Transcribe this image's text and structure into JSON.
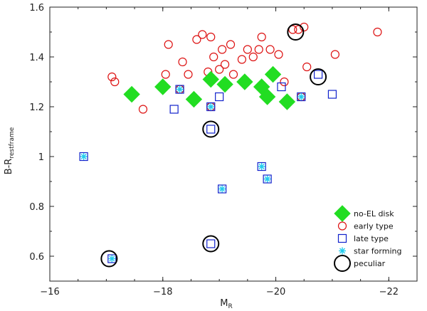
{
  "chart_data": {
    "type": "scatter",
    "xlabel": "M",
    "xlabel_sub": "R",
    "ylabel": "B-R",
    "ylabel_sub": "restframe",
    "xlim": [
      -16,
      -22.5
    ],
    "ylim": [
      0.5,
      1.6
    ],
    "x_ticks": [
      -16,
      -18,
      -20,
      -22
    ],
    "x_tick_labels": [
      "−16",
      "−18",
      "−20",
      "−22"
    ],
    "y_ticks": [
      0.6,
      0.8,
      1.0,
      1.2,
      1.4,
      1.6
    ],
    "y_tick_labels": [
      "0.6",
      "0.8",
      "1",
      "1.2",
      "1.4",
      "1.6"
    ],
    "grid": false,
    "legend_position": "bottom-right",
    "series": [
      {
        "name": "no-EL disk",
        "marker": "diamond",
        "color": "#22dd22",
        "points": [
          [
            -17.45,
            1.25
          ],
          [
            -18.0,
            1.28
          ],
          [
            -18.55,
            1.23
          ],
          [
            -18.85,
            1.31
          ],
          [
            -19.1,
            1.29
          ],
          [
            -19.45,
            1.3
          ],
          [
            -19.75,
            1.28
          ],
          [
            -19.85,
            1.24
          ],
          [
            -19.95,
            1.33
          ],
          [
            -20.2,
            1.22
          ]
        ]
      },
      {
        "name": "early type",
        "marker": "circle-open",
        "color": "#dd1111",
        "points": [
          [
            -17.1,
            1.32
          ],
          [
            -17.15,
            1.3
          ],
          [
            -17.65,
            1.19
          ],
          [
            -18.05,
            1.33
          ],
          [
            -18.1,
            1.45
          ],
          [
            -18.35,
            1.38
          ],
          [
            -18.45,
            1.33
          ],
          [
            -18.6,
            1.47
          ],
          [
            -18.7,
            1.49
          ],
          [
            -18.8,
            1.34
          ],
          [
            -18.85,
            1.48
          ],
          [
            -18.9,
            1.4
          ],
          [
            -19.0,
            1.35
          ],
          [
            -19.05,
            1.43
          ],
          [
            -19.1,
            1.37
          ],
          [
            -19.2,
            1.45
          ],
          [
            -19.25,
            1.33
          ],
          [
            -19.4,
            1.39
          ],
          [
            -19.5,
            1.43
          ],
          [
            -19.6,
            1.4
          ],
          [
            -19.7,
            1.43
          ],
          [
            -19.75,
            1.48
          ],
          [
            -19.9,
            1.43
          ],
          [
            -20.05,
            1.41
          ],
          [
            -20.15,
            1.3
          ],
          [
            -20.3,
            1.51
          ],
          [
            -20.4,
            1.51
          ],
          [
            -20.5,
            1.52
          ],
          [
            -20.55,
            1.36
          ],
          [
            -21.05,
            1.41
          ],
          [
            -21.8,
            1.5
          ],
          [
            -18.3,
            1.27
          ],
          [
            -18.85,
            1.2
          ],
          [
            -20.45,
            1.24
          ]
        ]
      },
      {
        "name": "late type",
        "marker": "square-open",
        "color": "#1122cc",
        "points": [
          [
            -16.6,
            1.0
          ],
          [
            -17.1,
            0.59
          ],
          [
            -18.2,
            1.19
          ],
          [
            -18.3,
            1.27
          ],
          [
            -18.85,
            1.2
          ],
          [
            -18.85,
            1.11
          ],
          [
            -18.85,
            0.65
          ],
          [
            -19.0,
            1.24
          ],
          [
            -19.05,
            0.87
          ],
          [
            -19.75,
            0.96
          ],
          [
            -19.85,
            0.91
          ],
          [
            -20.1,
            1.28
          ],
          [
            -20.45,
            1.24
          ],
          [
            -20.75,
            1.33
          ],
          [
            -21.0,
            1.25
          ]
        ]
      },
      {
        "name": "star forming",
        "marker": "asterisk",
        "color": "#22ccee",
        "points": [
          [
            -16.6,
            1.0
          ],
          [
            -17.1,
            0.59
          ],
          [
            -18.3,
            1.27
          ],
          [
            -18.85,
            1.2
          ],
          [
            -19.05,
            0.87
          ],
          [
            -19.75,
            0.96
          ],
          [
            -19.85,
            0.91
          ],
          [
            -20.45,
            1.24
          ]
        ]
      },
      {
        "name": "peculiar",
        "marker": "circle-large-open",
        "color": "#000000",
        "points": [
          [
            -17.05,
            0.59
          ],
          [
            -18.85,
            1.11
          ],
          [
            -18.85,
            0.65
          ],
          [
            -20.35,
            1.5
          ],
          [
            -20.75,
            1.32
          ]
        ]
      }
    ]
  }
}
